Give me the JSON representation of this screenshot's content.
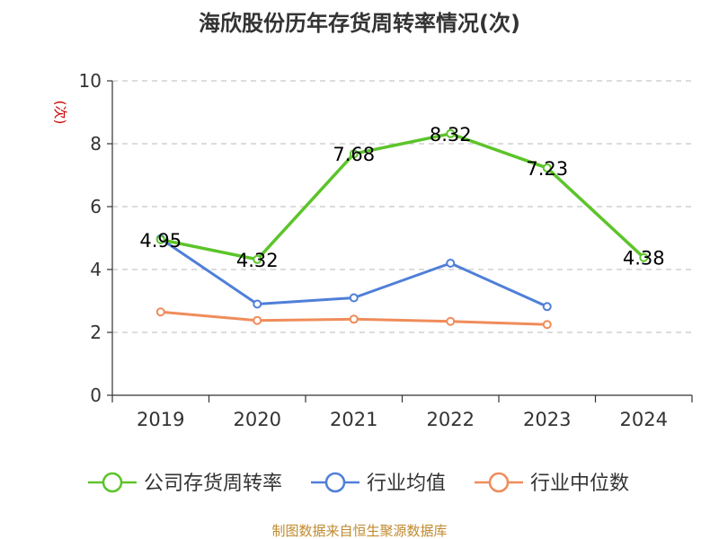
{
  "chart_data": {
    "type": "line",
    "title": "海欣股份历年存货周转率情况(次)",
    "ylabel": "(次)",
    "xlabel": "",
    "categories": [
      "2019",
      "2020",
      "2021",
      "2022",
      "2023",
      "2024"
    ],
    "ylim": [
      0,
      10
    ],
    "yticks": [
      0,
      2,
      4,
      6,
      8,
      10
    ],
    "grid": true,
    "legend_position": "bottom",
    "series": [
      {
        "name": "公司存货周转率",
        "color": "#5cc42a",
        "values": [
          4.95,
          4.32,
          7.68,
          8.32,
          7.23,
          4.38
        ],
        "labels": [
          "4.95",
          "4.32",
          "7.68",
          "8.32",
          "7.23",
          "4.38"
        ]
      },
      {
        "name": "行业均值",
        "color": "#4f7fd8",
        "values": [
          4.98,
          2.9,
          3.1,
          4.2,
          2.82,
          null
        ],
        "labels": []
      },
      {
        "name": "行业中位数",
        "color": "#f08c5a",
        "values": [
          2.65,
          2.38,
          2.42,
          2.35,
          2.25,
          null
        ],
        "labels": []
      }
    ],
    "source": "制图数据来自恒生聚源数据库"
  }
}
